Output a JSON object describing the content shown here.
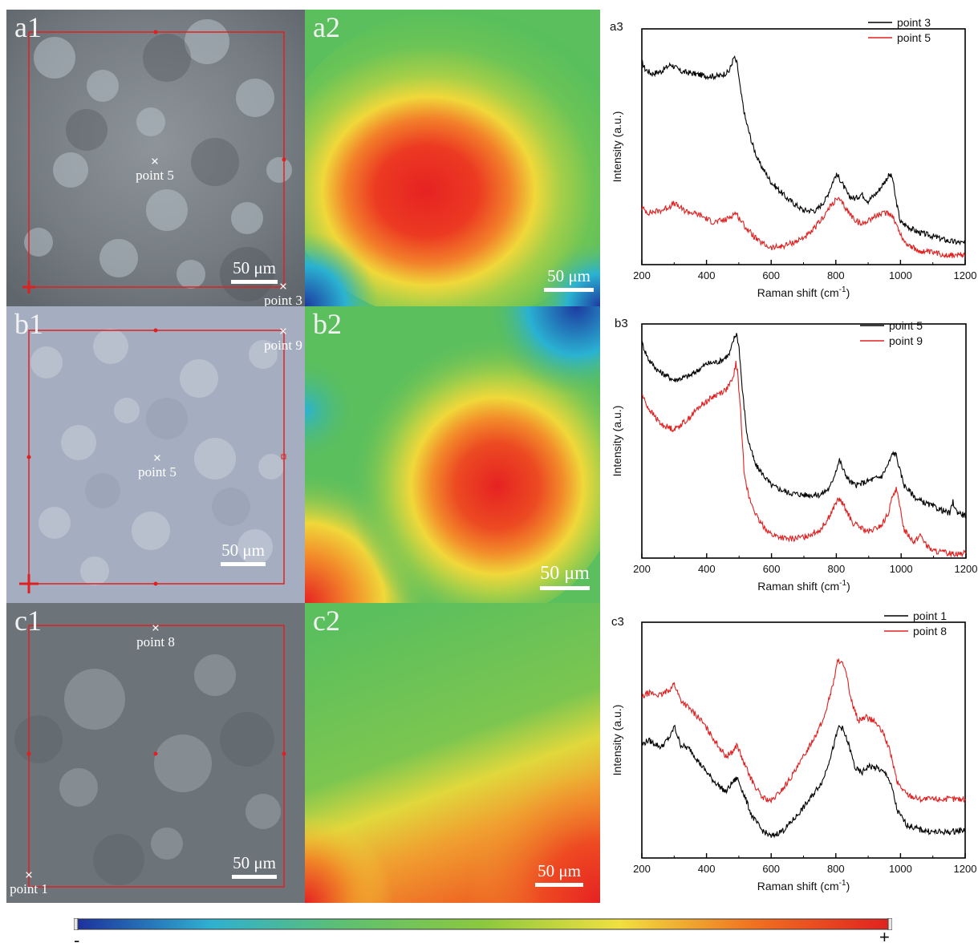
{
  "panels": {
    "a1": {
      "label": "a1",
      "scale": "50 μm",
      "points": [
        "point 5",
        "point 3"
      ]
    },
    "a2": {
      "label": "a2",
      "scale": "50 μm"
    },
    "b1": {
      "label": "b1",
      "scale": "50 μm",
      "points": [
        "point 9",
        "point 5"
      ]
    },
    "b2": {
      "label": "b2",
      "scale": "50 μm"
    },
    "c1": {
      "label": "c1",
      "scale": "50 μm",
      "points": [
        "point 8",
        "point 1"
      ]
    },
    "c2": {
      "label": "c2",
      "scale": "50 μm"
    }
  },
  "marker_symbol": "×",
  "colorbar": {
    "min_label": "-",
    "max_label": "+",
    "colors": [
      "#1c2f9c",
      "#2fb0d0",
      "#5fc070",
      "#8cc83e",
      "#f0e040",
      "#f07020",
      "#e02020"
    ]
  },
  "chart_data": [
    {
      "panel": "a3",
      "type": "line",
      "xlabel": "Raman shift (cm-1)",
      "xlabel_main": "Raman shift (cm",
      "xlabel_sup": "-1",
      "xlabel_end": ")",
      "ylabel": "Intensity (a.u.)",
      "xlim": [
        200,
        1200
      ],
      "ylim": [
        0,
        1
      ],
      "xticks": [
        "200",
        "400",
        "600",
        "800",
        "1000",
        "1200"
      ],
      "series": [
        {
          "name": "point 3",
          "color": "#000000",
          "x": [
            200,
            210,
            230,
            260,
            290,
            300,
            320,
            360,
            400,
            440,
            470,
            485,
            495,
            505,
            520,
            540,
            560,
            600,
            650,
            700,
            740,
            770,
            790,
            800,
            810,
            825,
            840,
            860,
            880,
            900,
            930,
            950,
            965,
            975,
            985,
            1000,
            1050,
            1100,
            1150,
            1200
          ],
          "y": [
            0.86,
            0.83,
            0.81,
            0.82,
            0.85,
            0.84,
            0.82,
            0.81,
            0.8,
            0.8,
            0.82,
            0.88,
            0.85,
            0.74,
            0.62,
            0.52,
            0.44,
            0.35,
            0.28,
            0.23,
            0.23,
            0.28,
            0.35,
            0.38,
            0.37,
            0.33,
            0.29,
            0.28,
            0.3,
            0.27,
            0.31,
            0.35,
            0.38,
            0.37,
            0.28,
            0.18,
            0.14,
            0.12,
            0.1,
            0.09
          ]
        },
        {
          "name": "point 5",
          "color": "#e02020",
          "x": [
            200,
            220,
            260,
            290,
            300,
            330,
            380,
            420,
            460,
            480,
            490,
            500,
            520,
            560,
            600,
            640,
            680,
            720,
            760,
            790,
            805,
            820,
            840,
            860,
            880,
            900,
            930,
            960,
            975,
            990,
            1010,
            1050,
            1100,
            1150,
            1200
          ],
          "y": [
            0.24,
            0.22,
            0.23,
            0.25,
            0.26,
            0.23,
            0.21,
            0.18,
            0.19,
            0.21,
            0.22,
            0.2,
            0.16,
            0.1,
            0.07,
            0.08,
            0.1,
            0.13,
            0.2,
            0.26,
            0.28,
            0.26,
            0.22,
            0.19,
            0.17,
            0.19,
            0.21,
            0.22,
            0.21,
            0.16,
            0.1,
            0.06,
            0.05,
            0.04,
            0.04
          ]
        }
      ]
    },
    {
      "panel": "b3",
      "type": "line",
      "xlabel": "Raman shift (cm-1)",
      "xlabel_main": "Raman shift (cm",
      "xlabel_sup": "-1",
      "xlabel_end": ")",
      "ylabel": "Intensity (a.u.)",
      "xlim": [
        200,
        1200
      ],
      "ylim": [
        0,
        1
      ],
      "xticks": [
        "200",
        "400",
        "600",
        "800",
        "1000",
        "1200"
      ],
      "series": [
        {
          "name": "point 5",
          "color": "#000000",
          "x": [
            200,
            220,
            250,
            300,
            350,
            400,
            440,
            470,
            485,
            492,
            500,
            510,
            525,
            550,
            600,
            650,
            700,
            750,
            780,
            800,
            810,
            820,
            840,
            860,
            900,
            940,
            960,
            975,
            985,
            995,
            1010,
            1050,
            1100,
            1150,
            1160,
            1170,
            1200
          ],
          "y": [
            0.92,
            0.85,
            0.8,
            0.76,
            0.78,
            0.83,
            0.84,
            0.87,
            0.94,
            0.96,
            0.9,
            0.72,
            0.52,
            0.4,
            0.31,
            0.28,
            0.27,
            0.27,
            0.3,
            0.38,
            0.42,
            0.38,
            0.33,
            0.31,
            0.33,
            0.35,
            0.4,
            0.45,
            0.44,
            0.38,
            0.31,
            0.25,
            0.22,
            0.19,
            0.24,
            0.2,
            0.18
          ]
        },
        {
          "name": "point 9",
          "color": "#e02020",
          "x": [
            200,
            220,
            260,
            300,
            340,
            380,
            420,
            460,
            480,
            490,
            495,
            505,
            515,
            530,
            560,
            600,
            650,
            700,
            750,
            780,
            800,
            810,
            825,
            850,
            900,
            940,
            960,
            975,
            985,
            995,
            1010,
            1040,
            1060,
            1080,
            1100,
            1150,
            1200
          ],
          "y": [
            0.7,
            0.64,
            0.57,
            0.55,
            0.59,
            0.65,
            0.69,
            0.72,
            0.76,
            0.83,
            0.8,
            0.62,
            0.38,
            0.26,
            0.16,
            0.1,
            0.08,
            0.09,
            0.12,
            0.18,
            0.24,
            0.25,
            0.22,
            0.15,
            0.11,
            0.14,
            0.19,
            0.27,
            0.3,
            0.22,
            0.12,
            0.07,
            0.1,
            0.05,
            0.03,
            0.02,
            0.02
          ]
        }
      ]
    },
    {
      "panel": "c3",
      "type": "line",
      "xlabel": "Raman shift (cm-1)",
      "xlabel_main": "Raman shift (cm",
      "xlabel_sup": "-1",
      "xlabel_end": ")",
      "ylabel": "Intensity (a.u.)",
      "xlim": [
        200,
        1200
      ],
      "ylim": [
        0,
        1
      ],
      "xticks": [
        "200",
        "400",
        "600",
        "800",
        "1000",
        "1200"
      ],
      "series": [
        {
          "name": "point 1",
          "color": "#000000",
          "x": [
            200,
            220,
            260,
            290,
            300,
            320,
            350,
            380,
            420,
            460,
            480,
            495,
            510,
            540,
            570,
            600,
            640,
            680,
            720,
            760,
            790,
            810,
            820,
            840,
            860,
            880,
            900,
            930,
            960,
            975,
            990,
            1020,
            1060,
            1100,
            1150,
            1200
          ],
          "y": [
            0.48,
            0.5,
            0.47,
            0.52,
            0.56,
            0.48,
            0.46,
            0.4,
            0.33,
            0.28,
            0.32,
            0.34,
            0.29,
            0.18,
            0.12,
            0.09,
            0.12,
            0.18,
            0.25,
            0.33,
            0.46,
            0.56,
            0.55,
            0.48,
            0.38,
            0.36,
            0.39,
            0.38,
            0.35,
            0.29,
            0.2,
            0.14,
            0.12,
            0.11,
            0.11,
            0.12
          ]
        },
        {
          "name": "point 8",
          "color": "#e02020",
          "x": [
            200,
            220,
            260,
            290,
            300,
            320,
            350,
            380,
            420,
            460,
            480,
            495,
            510,
            540,
            570,
            600,
            640,
            680,
            720,
            760,
            790,
            805,
            815,
            830,
            850,
            870,
            890,
            920,
            950,
            970,
            990,
            1020,
            1060,
            1100,
            1150,
            1200
          ],
          "y": [
            0.68,
            0.7,
            0.69,
            0.72,
            0.74,
            0.67,
            0.63,
            0.59,
            0.51,
            0.43,
            0.45,
            0.48,
            0.42,
            0.33,
            0.26,
            0.24,
            0.3,
            0.38,
            0.48,
            0.58,
            0.73,
            0.83,
            0.84,
            0.79,
            0.66,
            0.58,
            0.6,
            0.58,
            0.52,
            0.44,
            0.32,
            0.27,
            0.25,
            0.25,
            0.25,
            0.25
          ]
        }
      ]
    }
  ]
}
